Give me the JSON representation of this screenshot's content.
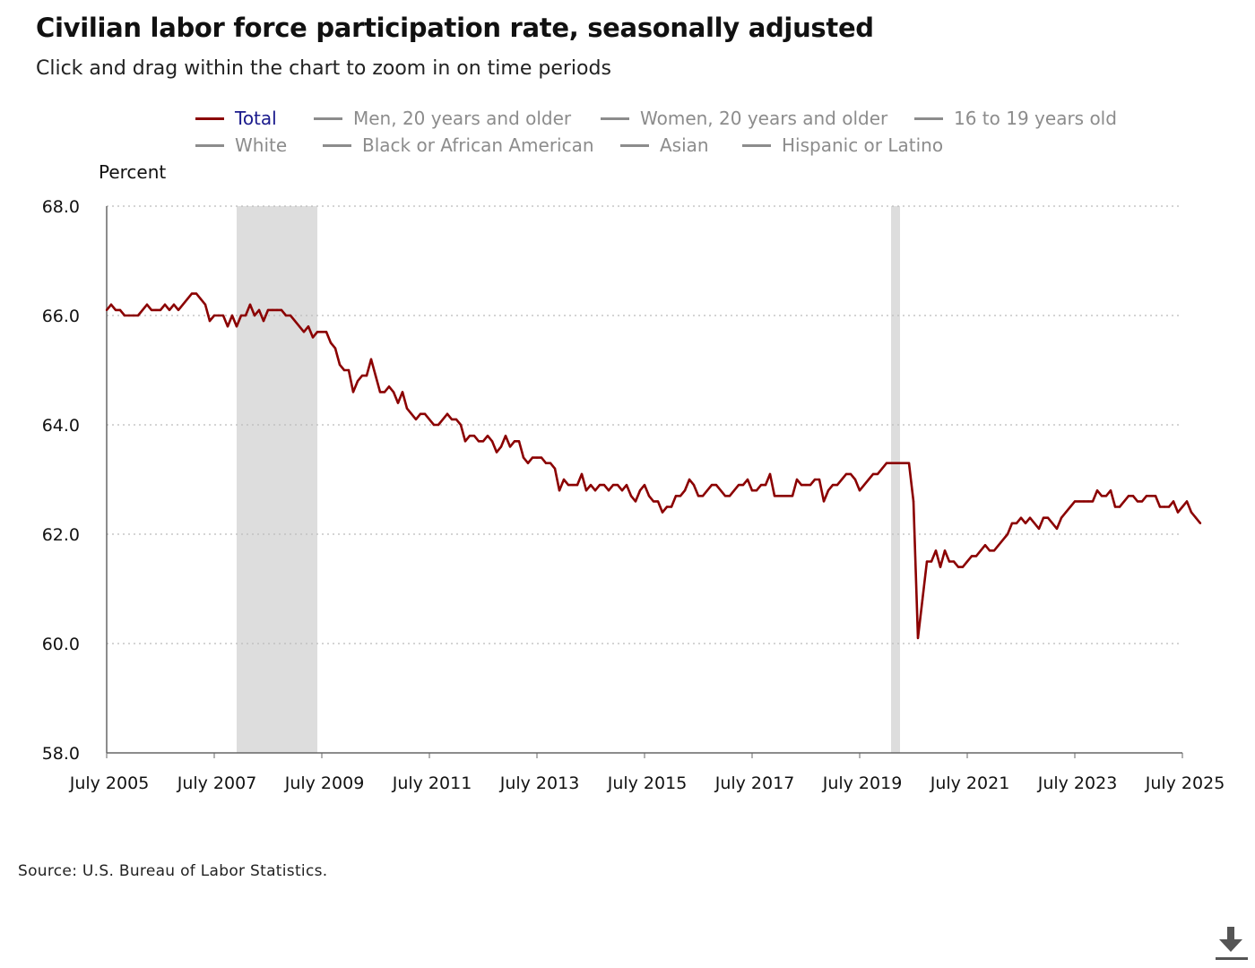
{
  "title": "Civilian labor force participation rate, seasonally adjusted",
  "subtitle": "Click and drag within the chart to zoom in on time periods",
  "source": "Source: U.S. Bureau of Labor Statistics.",
  "download_icon": "download-icon",
  "colors": {
    "total": "#8b0000",
    "inactive_swatch": "#8c8c8c",
    "active_label": "#1a1a8c",
    "inactive_label": "#8c8c8c",
    "recession": "#dddddd",
    "grid": "#bbbbbb"
  },
  "legend": [
    {
      "label": "Total",
      "active": true
    },
    {
      "label": "Men, 20 years and older",
      "active": false
    },
    {
      "label": "Women, 20 years and older",
      "active": false
    },
    {
      "label": "16 to 19 years old",
      "active": false
    },
    {
      "label": "White",
      "active": false
    },
    {
      "label": "Black or African American",
      "active": false
    },
    {
      "label": "Asian",
      "active": false
    },
    {
      "label": "Hispanic or Latino",
      "active": false
    }
  ],
  "chart_data": {
    "type": "line",
    "title": "Civilian labor force participation rate, seasonally adjusted",
    "ylabel": "Percent",
    "xlabel": "",
    "ylim": [
      58,
      68
    ],
    "yticks": [
      "58.0",
      "60.0",
      "62.0",
      "64.0",
      "66.0",
      "68.0"
    ],
    "xlim": [
      "2005-07",
      "2025-07"
    ],
    "xticks": [
      "July 2005",
      "July 2007",
      "July 2009",
      "July 2011",
      "July 2013",
      "July 2015",
      "July 2017",
      "July 2019",
      "July 2021",
      "July 2023",
      "July 2025"
    ],
    "grid": true,
    "legend_position": "top",
    "recessions": [
      [
        "2007-12",
        "2009-06"
      ],
      [
        "2020-02",
        "2020-04"
      ]
    ],
    "series": [
      {
        "name": "Total",
        "start": "2005-07",
        "values": [
          66.1,
          66.2,
          66.1,
          66.1,
          66.0,
          66.0,
          66.0,
          66.0,
          66.1,
          66.2,
          66.1,
          66.1,
          66.1,
          66.2,
          66.1,
          66.2,
          66.1,
          66.2,
          66.3,
          66.4,
          66.4,
          66.3,
          66.2,
          65.9,
          66.0,
          66.0,
          66.0,
          65.8,
          66.0,
          65.8,
          66.0,
          66.0,
          66.2,
          66.0,
          66.1,
          65.9,
          66.1,
          66.1,
          66.1,
          66.1,
          66.0,
          66.0,
          65.9,
          65.8,
          65.7,
          65.8,
          65.6,
          65.7,
          65.7,
          65.7,
          65.5,
          65.4,
          65.1,
          65.0,
          65.0,
          64.6,
          64.8,
          64.9,
          64.9,
          65.2,
          64.9,
          64.6,
          64.6,
          64.7,
          64.6,
          64.4,
          64.6,
          64.3,
          64.2,
          64.1,
          64.2,
          64.2,
          64.1,
          64.0,
          64.0,
          64.1,
          64.2,
          64.1,
          64.1,
          64.0,
          63.7,
          63.8,
          63.8,
          63.7,
          63.7,
          63.8,
          63.7,
          63.5,
          63.6,
          63.8,
          63.6,
          63.7,
          63.7,
          63.4,
          63.3,
          63.4,
          63.4,
          63.4,
          63.3,
          63.3,
          63.2,
          62.8,
          63.0,
          62.9,
          62.9,
          62.9,
          63.1,
          62.8,
          62.9,
          62.8,
          62.9,
          62.9,
          62.8,
          62.9,
          62.9,
          62.8,
          62.9,
          62.7,
          62.6,
          62.8,
          62.9,
          62.7,
          62.6,
          62.6,
          62.4,
          62.5,
          62.5,
          62.7,
          62.7,
          62.8,
          63.0,
          62.9,
          62.7,
          62.7,
          62.8,
          62.9,
          62.9,
          62.8,
          62.7,
          62.7,
          62.8,
          62.9,
          62.9,
          63.0,
          62.8,
          62.8,
          62.9,
          62.9,
          63.1,
          62.7,
          62.7,
          62.7,
          62.7,
          62.7,
          63.0,
          62.9,
          62.9,
          62.9,
          63.0,
          63.0,
          62.6,
          62.8,
          62.9,
          62.9,
          63.0,
          63.1,
          63.1,
          63.0,
          62.8,
          62.9,
          63.0,
          63.1,
          63.1,
          63.2,
          63.3,
          63.3,
          63.3,
          63.3,
          63.3,
          63.3,
          62.6,
          60.1,
          60.8,
          61.5,
          61.5,
          61.7,
          61.4,
          61.7,
          61.5,
          61.5,
          61.4,
          61.4,
          61.5,
          61.6,
          61.6,
          61.7,
          61.8,
          61.7,
          61.7,
          61.8,
          61.9,
          62.0,
          62.2,
          62.2,
          62.3,
          62.2,
          62.3,
          62.2,
          62.1,
          62.3,
          62.3,
          62.2,
          62.1,
          62.3,
          62.4,
          62.5,
          62.6,
          62.6,
          62.6,
          62.6,
          62.6,
          62.8,
          62.7,
          62.7,
          62.8,
          62.5,
          62.5,
          62.6,
          62.7,
          62.7,
          62.6,
          62.6,
          62.7,
          62.7,
          62.7,
          62.5,
          62.5,
          62.5,
          62.6,
          62.4,
          62.5,
          62.6,
          62.4,
          62.3,
          62.2
        ]
      }
    ]
  }
}
